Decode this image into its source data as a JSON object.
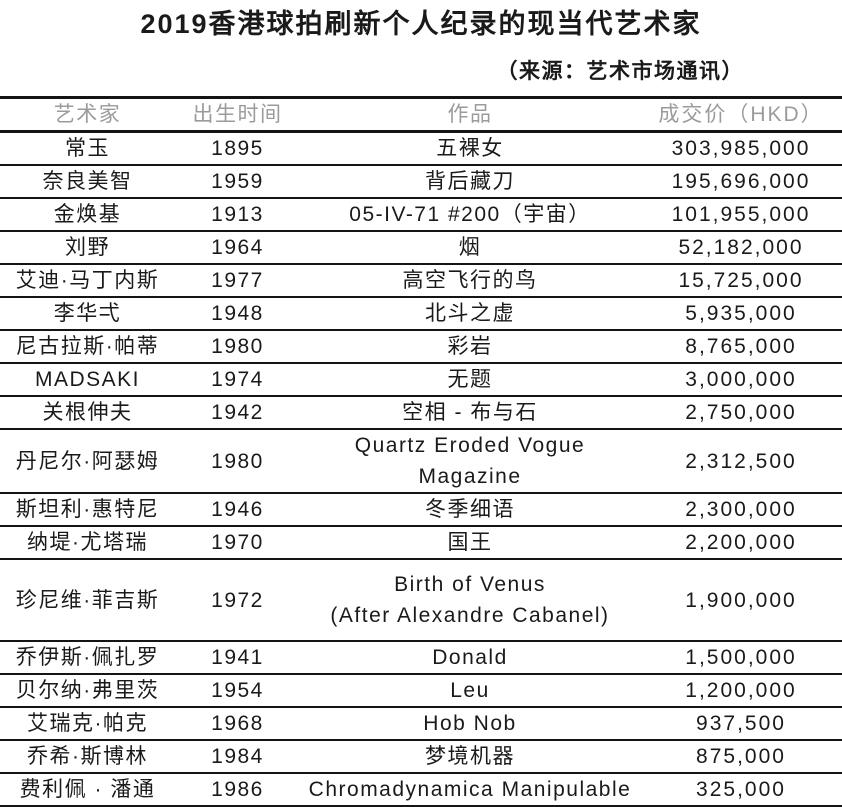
{
  "chart_data": {
    "type": "table",
    "title": "2019香港球拍刷新个人纪录的现当代艺术家",
    "subtitle": "（来源：艺术市场通讯）",
    "columns": [
      "艺术家",
      "出生时间",
      "作品",
      "成交价（HKD）"
    ],
    "rows": [
      {
        "artist": "常玉",
        "birth": "1895",
        "work": "五裸女",
        "price": "303,985,000"
      },
      {
        "artist": "奈良美智",
        "birth": "1959",
        "work": "背后藏刀",
        "price": "195,696,000"
      },
      {
        "artist": "金焕基",
        "birth": "1913",
        "work": "05-IV-71 #200（宇宙）",
        "price": "101,955,000"
      },
      {
        "artist": "刘野",
        "birth": "1964",
        "work": "烟",
        "price": "52,182,000"
      },
      {
        "artist": "艾迪·马丁内斯",
        "birth": "1977",
        "work": "高空飞行的鸟",
        "price": "15,725,000"
      },
      {
        "artist": "李华弌",
        "birth": "1948",
        "work": "北斗之虚",
        "price": "5,935,000"
      },
      {
        "artist": "尼古拉斯·帕蒂",
        "birth": "1980",
        "work": "彩岩",
        "price": "8,765,000"
      },
      {
        "artist": "MADSAKI",
        "birth": "1974",
        "work": "无题",
        "price": "3,000,000"
      },
      {
        "artist": "关根伸夫",
        "birth": "1942",
        "work": "空相 - 布与石",
        "price": "2,750,000"
      },
      {
        "artist": "丹尼尔·阿瑟姆",
        "birth": "1980",
        "work": "Quartz Eroded Vogue Magazine",
        "price": "2,312,500"
      },
      {
        "artist": "斯坦利·惠特尼",
        "birth": "1946",
        "work": "冬季细语",
        "price": "2,300,000"
      },
      {
        "artist": "纳堤·尤塔瑞",
        "birth": "1970",
        "work": "国王",
        "price": "2,200,000"
      },
      {
        "artist": "珍尼维·菲吉斯",
        "birth": "1972",
        "work": "Birth of Venus\n(After Alexandre Cabanel)",
        "price": "1,900,000"
      },
      {
        "artist": "乔伊斯·佩扎罗",
        "birth": "1941",
        "work": "Donald",
        "price": "1,500,000"
      },
      {
        "artist": "贝尔纳·弗里茨",
        "birth": "1954",
        "work": "Leu",
        "price": "1,200,000"
      },
      {
        "artist": "艾瑞克·帕克",
        "birth": "1968",
        "work": "Hob Nob",
        "price": "937,500"
      },
      {
        "artist": "乔希·斯博林",
        "birth": "1984",
        "work": "梦境机器",
        "price": "875,000"
      },
      {
        "artist": "费利佩 · 潘通",
        "birth": "1986",
        "work": "Chromadynamica Manipulable",
        "price": "325,000"
      }
    ]
  },
  "colors": {
    "background": "#ffffff",
    "text": "#1a1a1a",
    "header_text": "#9b9b9b",
    "border": "#141414"
  }
}
